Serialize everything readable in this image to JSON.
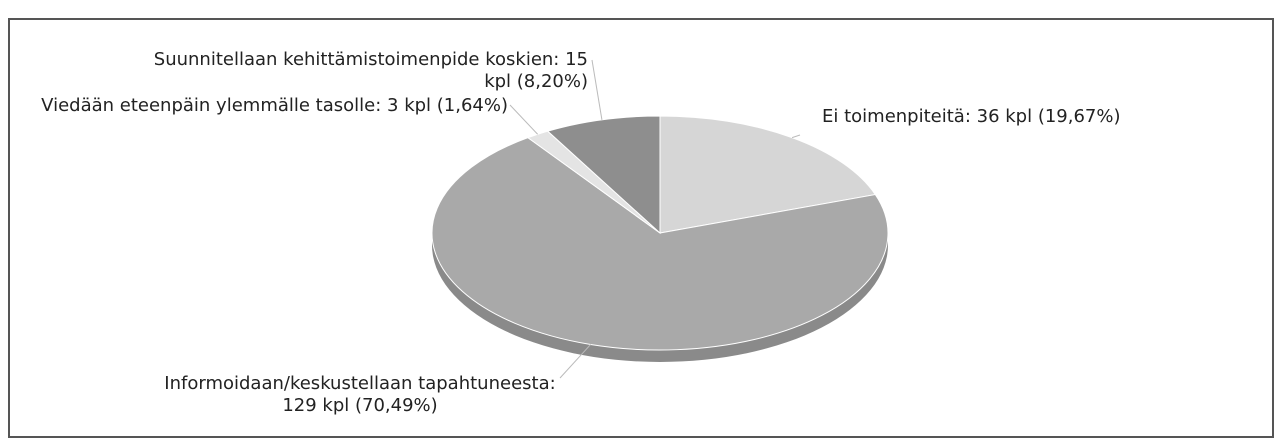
{
  "chart_data": {
    "type": "pie",
    "values": [
      36,
      129,
      3,
      15
    ],
    "value_labels": [
      "Ei toimenpiteitä: 36 kpl (19,67%)",
      "Informoidaan/keskustellaan tapahtuneesta: 129 kpl (70,49%)",
      "Viedään eteenpäin ylemmälle tasolle: 3 kpl (1,64%)",
      "Suunnitellaan kehittämistoimenpide koskien: 15 kpl (8,20%)"
    ],
    "colors": [
      "#d6d6d6",
      "#a9a9a9",
      "#e4e4e4",
      "#8e8e8e"
    ]
  }
}
